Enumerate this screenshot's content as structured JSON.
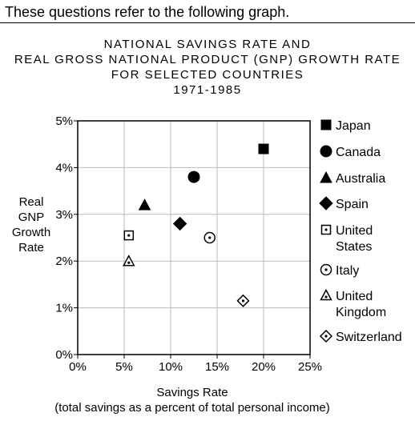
{
  "intro": "These questions refer to the following graph.",
  "chart_data": {
    "type": "scatter",
    "title_lines": [
      "NATIONAL SAVINGS RATE AND",
      "REAL GROSS NATIONAL PRODUCT (GNP) GROWTH RATE",
      "FOR SELECTED COUNTRIES",
      "1971-1985"
    ],
    "ylabel_lines": [
      "Real",
      "GNP",
      "Growth",
      "Rate"
    ],
    "xlabel_lines": [
      "Savings Rate",
      "(total savings as a percent of total personal income)"
    ],
    "xlim": [
      0,
      25
    ],
    "ylim": [
      0,
      5
    ],
    "x_ticks": [
      0,
      5,
      10,
      15,
      20,
      25
    ],
    "x_tick_labels": [
      "0%",
      "5%",
      "10%",
      "15%",
      "20%",
      "25%"
    ],
    "y_ticks": [
      0,
      1,
      2,
      3,
      4,
      5
    ],
    "y_tick_labels": [
      "0%",
      "1%",
      "2%",
      "3%",
      "4%",
      "5%"
    ],
    "grid": true,
    "legend_position": "right",
    "series": [
      {
        "name": "Japan",
        "legend_lines": [
          "Japan"
        ],
        "marker": "square-filled",
        "x": 20,
        "y": 4.4
      },
      {
        "name": "Canada",
        "legend_lines": [
          "Canada"
        ],
        "marker": "circle-filled",
        "x": 12.5,
        "y": 3.8
      },
      {
        "name": "Australia",
        "legend_lines": [
          "Australia"
        ],
        "marker": "triangle-filled",
        "x": 7.2,
        "y": 3.2
      },
      {
        "name": "Spain",
        "legend_lines": [
          "Spain"
        ],
        "marker": "diamond-filled",
        "x": 11,
        "y": 2.8
      },
      {
        "name": "United States",
        "legend_lines": [
          "United",
          "States"
        ],
        "marker": "square-dot",
        "x": 5.5,
        "y": 2.55
      },
      {
        "name": "Italy",
        "legend_lines": [
          "Italy"
        ],
        "marker": "circle-dot",
        "x": 14.2,
        "y": 2.5
      },
      {
        "name": "United Kingdom",
        "legend_lines": [
          "United",
          "Kingdom"
        ],
        "marker": "triangle-dot",
        "x": 5.5,
        "y": 2.0
      },
      {
        "name": "Switzerland",
        "legend_lines": [
          "Switzerland"
        ],
        "marker": "diamond-dot",
        "x": 17.8,
        "y": 1.15
      }
    ]
  }
}
